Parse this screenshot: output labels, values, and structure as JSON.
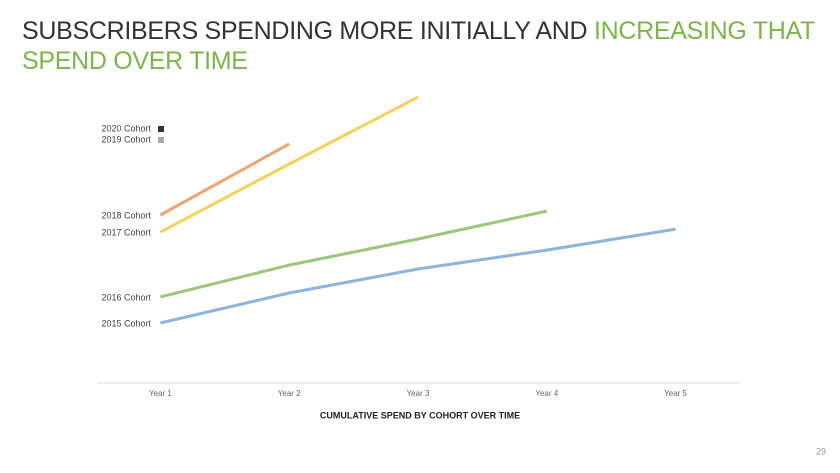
{
  "chart_data": {
    "type": "line",
    "title": [
      "SUBSCRIBERS SPENDING MORE INITIALLY AND",
      "INCREASING THAT SPEND OVER TIME"
    ],
    "xlabel": "CUMULATIVE SPEND BY COHORT OVER TIME",
    "categories": [
      "Year 1",
      "Year 2",
      "Year 3",
      "Year 4",
      "Year 5"
    ],
    "ylim": [
      0,
      100
    ],
    "series": [
      {
        "name": "2015 Cohort",
        "color": "#8db4dc",
        "values": [
          20,
          30,
          38,
          44.3,
          51.3
        ]
      },
      {
        "name": "2016 Cohort",
        "color": "#9ac87a",
        "values": [
          28.7,
          39.3,
          48,
          57.3,
          null
        ]
      },
      {
        "name": "2017 Cohort",
        "color": "#f5d35a",
        "values": [
          50.3,
          73,
          95.3,
          null,
          null
        ]
      },
      {
        "name": "2018 Cohort",
        "color": "#eea571",
        "values": [
          56,
          79.7,
          null,
          null,
          null
        ]
      },
      {
        "name": "2019 Cohort",
        "color": "#aaaaaa",
        "values": [
          null,
          null,
          null,
          null,
          null
        ]
      },
      {
        "name": "2020 Cohort",
        "color": "#333333",
        "values": [
          null,
          null,
          null,
          null,
          null
        ]
      }
    ],
    "page_number": "29"
  }
}
